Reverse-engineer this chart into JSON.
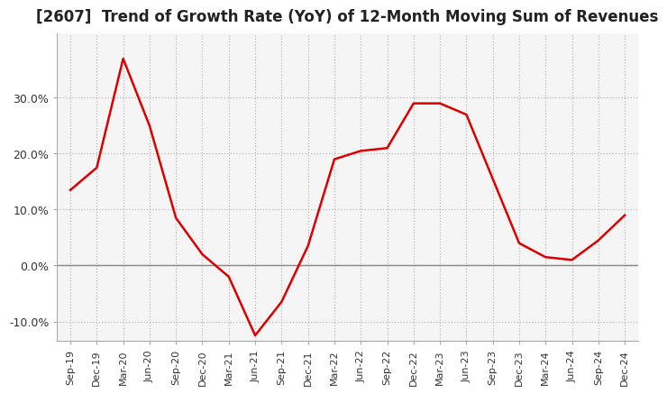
{
  "title": "[2607]  Trend of Growth Rate (YoY) of 12-Month Moving Sum of Revenues",
  "title_fontsize": 12,
  "line_color": "#dd0000",
  "background_color": "#ffffff",
  "grid_color": "#bbbbbb",
  "plot_bg_color": "#f5f5f5",
  "ylim": [
    -0.135,
    0.415
  ],
  "yticks": [
    -0.1,
    0.0,
    0.1,
    0.2,
    0.3
  ],
  "ytick_labels": [
    "-10.0%",
    "0.0%",
    "10.0%",
    "20.0%",
    "30.0%"
  ],
  "x_labels": [
    "Sep-19",
    "Dec-19",
    "Mar-20",
    "Jun-20",
    "Sep-20",
    "Dec-20",
    "Mar-21",
    "Jun-21",
    "Sep-21",
    "Dec-21",
    "Mar-22",
    "Jun-22",
    "Sep-22",
    "Dec-22",
    "Mar-23",
    "Jun-23",
    "Sep-23",
    "Dec-23",
    "Mar-24",
    "Jun-24",
    "Sep-24",
    "Dec-24"
  ],
  "y_values": [
    0.135,
    0.175,
    0.37,
    0.25,
    0.085,
    0.02,
    -0.02,
    -0.125,
    -0.065,
    0.035,
    0.19,
    0.205,
    0.21,
    0.29,
    0.29,
    0.27,
    0.155,
    0.04,
    0.015,
    0.01,
    0.045,
    0.09
  ]
}
